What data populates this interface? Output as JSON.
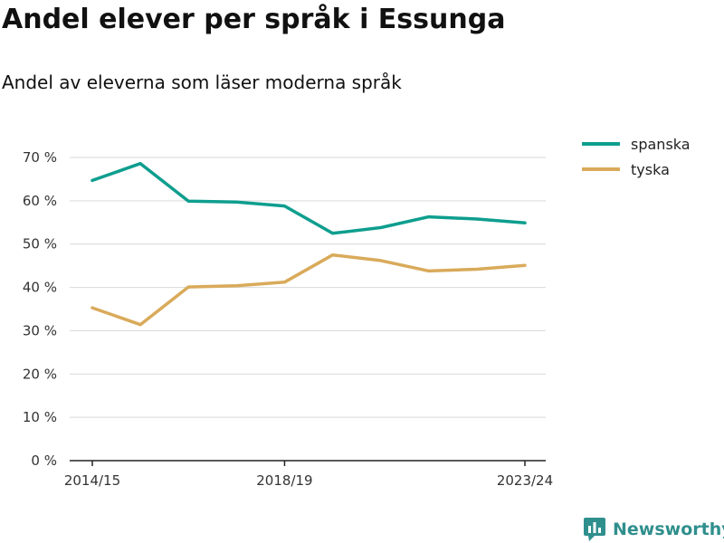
{
  "title": "Andel elever per språk i Essunga",
  "subtitle": "Andel av eleverna som läser moderna språk",
  "brand": {
    "name": "Newsworthy",
    "icon": "newsworthy-logo-icon",
    "color": "#2f8f8d"
  },
  "chart_data": {
    "type": "line",
    "x": [
      "2014/15",
      "2015/16",
      "2016/17",
      "2017/18",
      "2018/19",
      "2019/20",
      "2020/21",
      "2021/22",
      "2022/23",
      "2023/24"
    ],
    "xtick_labels": [
      "2014/15",
      "2018/19",
      "2023/24"
    ],
    "ylim": [
      0,
      70
    ],
    "yticks": [
      0,
      10,
      20,
      30,
      40,
      50,
      60,
      70
    ],
    "ytick_labels": [
      "0 %",
      "10 %",
      "20 %",
      "30 %",
      "40 %",
      "50 %",
      "60 %",
      "70 %"
    ],
    "y_unit": "%",
    "grid": true,
    "legend_position": "top-right",
    "series": [
      {
        "name": "spanska",
        "color": "#0e9e8e",
        "values": [
          64.7,
          68.6,
          59.9,
          59.7,
          58.8,
          52.5,
          53.8,
          56.3,
          55.8,
          54.9
        ]
      },
      {
        "name": "tyska",
        "color": "#d9aa5a",
        "values": [
          35.3,
          31.4,
          40.1,
          40.4,
          41.2,
          47.5,
          46.2,
          43.8,
          44.2,
          45.1
        ]
      }
    ]
  }
}
